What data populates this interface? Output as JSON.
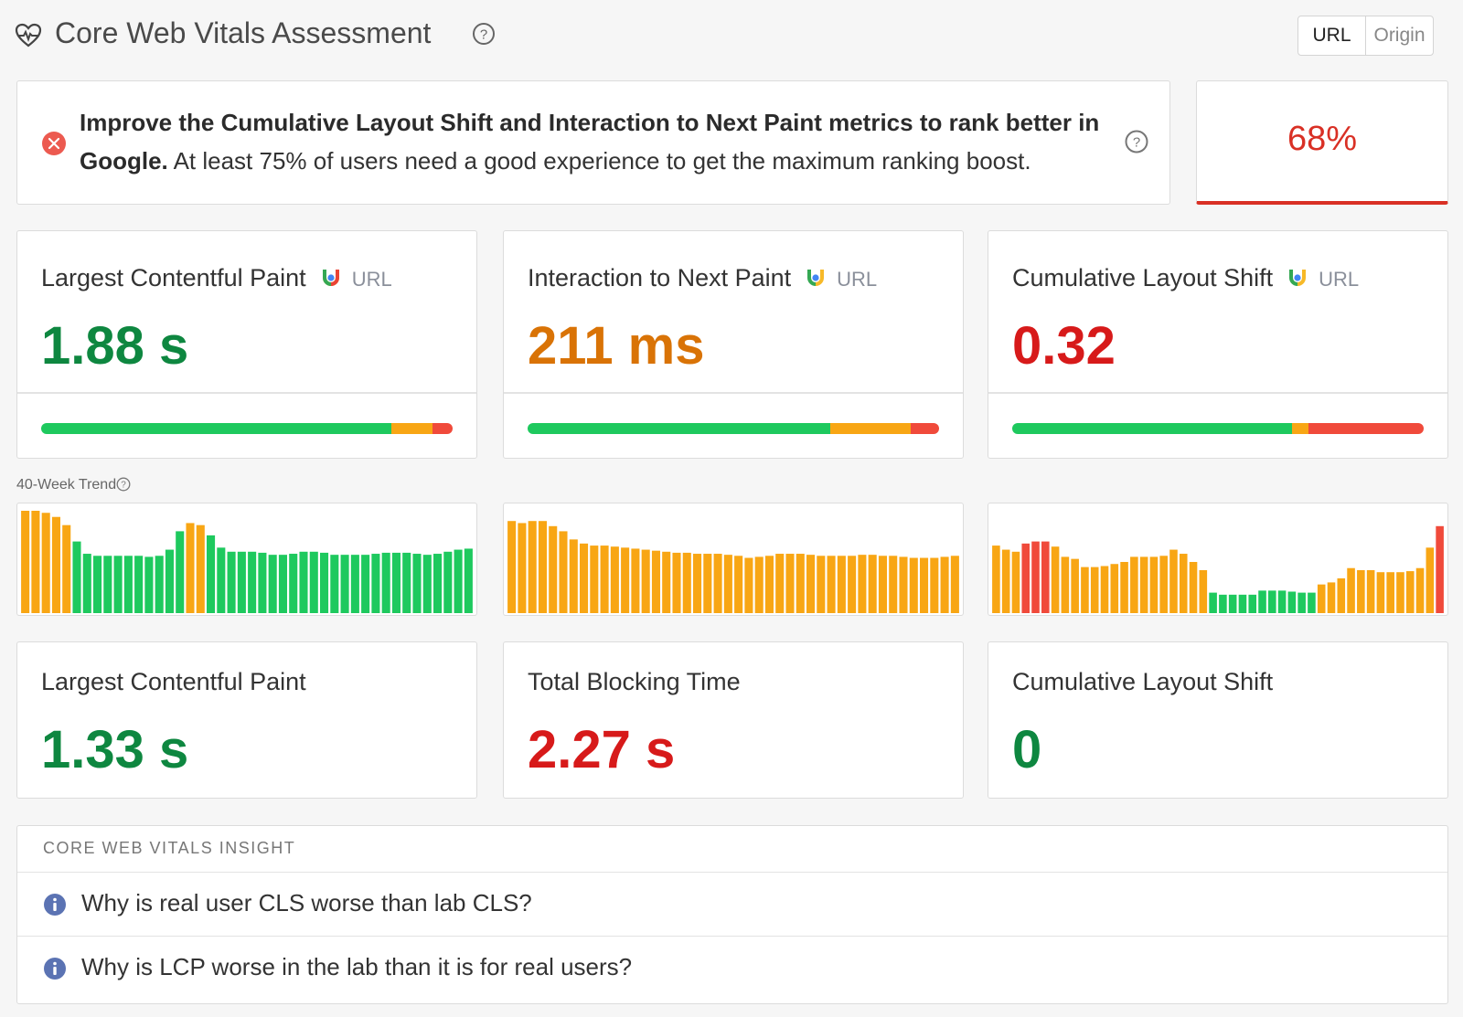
{
  "header": {
    "title": "Core Web Vitals Assessment",
    "toggle": [
      "URL",
      "Origin"
    ],
    "active_toggle": "URL"
  },
  "assessment": {
    "message_bold": "Improve the Cumulative Layout Shift and Interaction to Next Paint metrics to rank better in Google.",
    "message_rest": " At least 75% of users need a good experience to get the maximum ranking boost.",
    "score": "68%",
    "status": "fail"
  },
  "field_metrics": [
    {
      "name": "Largest Contentful Paint",
      "source": "URL",
      "value": "1.88 s",
      "rating": "good",
      "distribution": {
        "good": 85,
        "needs_improvement": 10,
        "poor": 5
      }
    },
    {
      "name": "Interaction to Next Paint",
      "source": "URL",
      "value": "211 ms",
      "rating": "needs-improvement",
      "distribution": {
        "good": 73.5,
        "needs_improvement": 19.5,
        "poor": 7
      }
    },
    {
      "name": "Cumulative Layout Shift",
      "source": "URL",
      "value": "0.32",
      "rating": "poor",
      "distribution": {
        "good": 68,
        "needs_improvement": 4,
        "poor": 28
      }
    }
  ],
  "trend": {
    "label": "40-Week Trend",
    "series": [
      {
        "metric": "Largest Contentful Paint",
        "values": [
          100,
          100,
          98,
          94,
          86,
          70,
          58,
          56,
          56,
          56,
          56,
          56,
          55,
          56,
          62,
          80,
          88,
          86,
          76,
          64,
          60,
          60,
          60,
          59,
          57,
          57,
          58,
          60,
          60,
          59,
          57,
          57,
          57,
          57,
          58,
          59,
          59,
          59,
          58,
          57,
          58,
          60,
          62,
          63
        ],
        "ratings": [
          "ni",
          "ni",
          "ni",
          "ni",
          "ni",
          "good",
          "good",
          "good",
          "good",
          "good",
          "good",
          "good",
          "good",
          "good",
          "good",
          "good",
          "ni",
          "ni",
          "good",
          "good",
          "good",
          "good",
          "good",
          "good",
          "good",
          "good",
          "good",
          "good",
          "good",
          "good",
          "good",
          "good",
          "good",
          "good",
          "good",
          "good",
          "good",
          "good",
          "good",
          "good",
          "good",
          "good",
          "good",
          "good"
        ]
      },
      {
        "metric": "Interaction to Next Paint",
        "values": [
          90,
          88,
          90,
          90,
          85,
          80,
          72,
          68,
          66,
          66,
          65,
          64,
          63,
          62,
          61,
          60,
          59,
          59,
          58,
          58,
          58,
          57,
          56,
          54,
          55,
          56,
          58,
          58,
          58,
          57,
          56,
          56,
          56,
          56,
          57,
          57,
          56,
          56,
          55,
          54,
          54,
          54,
          55,
          56
        ],
        "ratings": [
          "ni",
          "ni",
          "ni",
          "ni",
          "ni",
          "ni",
          "ni",
          "ni",
          "ni",
          "ni",
          "ni",
          "ni",
          "ni",
          "ni",
          "ni",
          "ni",
          "ni",
          "ni",
          "ni",
          "ni",
          "ni",
          "ni",
          "ni",
          "ni",
          "ni",
          "ni",
          "ni",
          "ni",
          "ni",
          "ni",
          "ni",
          "ni",
          "ni",
          "ni",
          "ni",
          "ni",
          "ni",
          "ni",
          "ni",
          "ni",
          "ni",
          "ni",
          "ni",
          "ni"
        ]
      },
      {
        "metric": "Cumulative Layout Shift",
        "values": [
          66,
          62,
          60,
          68,
          70,
          70,
          65,
          55,
          53,
          45,
          45,
          46,
          48,
          50,
          55,
          55,
          55,
          56,
          62,
          58,
          50,
          42,
          20,
          18,
          18,
          18,
          18,
          22,
          22,
          22,
          21,
          20,
          20,
          28,
          30,
          34,
          44,
          42,
          42,
          40,
          40,
          40,
          41,
          44,
          64,
          85
        ],
        "ratings": [
          "ni",
          "ni",
          "ni",
          "poor",
          "poor",
          "poor",
          "ni",
          "ni",
          "ni",
          "ni",
          "ni",
          "ni",
          "ni",
          "ni",
          "ni",
          "ni",
          "ni",
          "ni",
          "ni",
          "ni",
          "ni",
          "ni",
          "good",
          "good",
          "good",
          "good",
          "good",
          "good",
          "good",
          "good",
          "good",
          "good",
          "good",
          "ni",
          "ni",
          "ni",
          "ni",
          "ni",
          "ni",
          "ni",
          "ni",
          "ni",
          "ni",
          "ni",
          "ni",
          "poor"
        ]
      }
    ]
  },
  "lab_metrics": [
    {
      "name": "Largest Contentful Paint",
      "value": "1.33 s",
      "rating": "good"
    },
    {
      "name": "Total Blocking Time",
      "value": "2.27 s",
      "rating": "poor"
    },
    {
      "name": "Cumulative Layout Shift",
      "value": "0",
      "rating": "good"
    }
  ],
  "insight": {
    "header": "CORE WEB VITALS INSIGHT",
    "items": [
      "Why is real user CLS worse than lab CLS?",
      "Why is LCP worse in the lab than it is for real users?"
    ]
  },
  "colors": {
    "good": "#1ec95e",
    "needs_improvement": "#f8a614",
    "poor": "#f04a3b",
    "good_text": "#0e8740",
    "ni_text": "#d97306",
    "poor_text": "#d71a1a",
    "info": "#5b73b3"
  }
}
